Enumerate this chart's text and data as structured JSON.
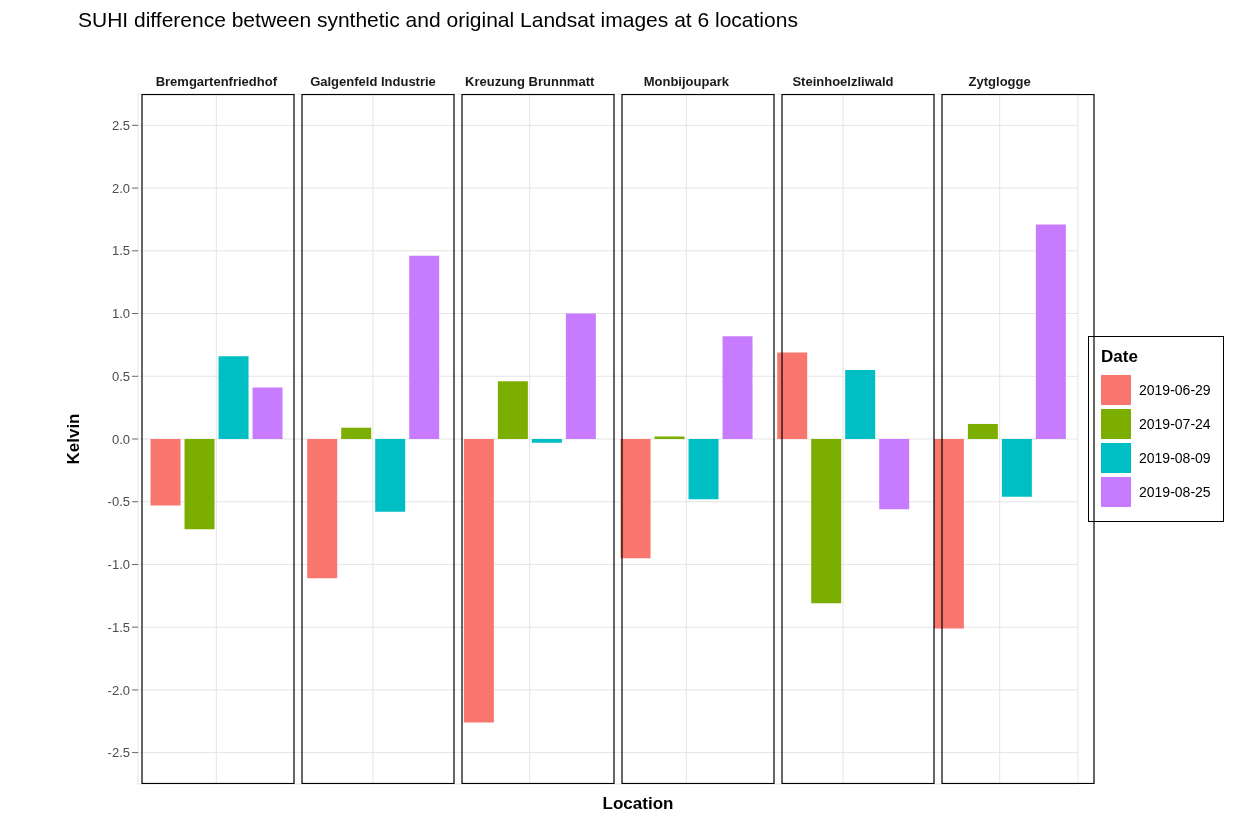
{
  "chart_data": {
    "type": "bar",
    "title": "SUHI difference between synthetic and original Landsat images at 6 locations",
    "xlabel": "Location",
    "ylabel": "Kelvin",
    "legend_title": "Date",
    "legend": "right",
    "grid": true,
    "categories": [
      "Bremgartenfriedhof",
      "Galgenfeld Industrie",
      "Kreuzung Brunnmatt",
      "Monbijoupark",
      "Steinhoelzliwald",
      "Zytglogge"
    ],
    "series": [
      {
        "name": "2019-06-29",
        "color": "#f8766d",
        "values": [
          -0.53,
          -1.11,
          -2.26,
          -0.95,
          0.69,
          -1.51
        ]
      },
      {
        "name": "2019-07-24",
        "color": "#7cae00",
        "values": [
          -0.72,
          0.09,
          0.46,
          0.02,
          -1.31,
          0.12
        ]
      },
      {
        "name": "2019-08-09",
        "color": "#00bfc4",
        "values": [
          0.66,
          -0.58,
          -0.03,
          -0.48,
          0.55,
          -0.46
        ]
      },
      {
        "name": "2019-08-25",
        "color": "#c77cff",
        "values": [
          0.41,
          1.46,
          1.0,
          0.82,
          -0.56,
          1.71
        ]
      }
    ],
    "ylim": [
      -2.75,
      2.75
    ],
    "yticks": [
      -2.5,
      {
        "value": -2,
        "label": "-2.0"
      },
      -1.5,
      {
        "value": -1,
        "label": "-1.0"
      },
      -0.5,
      {
        "value": 0,
        "label": "0.0"
      },
      0.5,
      {
        "value": 1,
        "label": "1.0"
      },
      1.5,
      {
        "value": 2,
        "label": "2.0"
      },
      2.5
    ]
  }
}
